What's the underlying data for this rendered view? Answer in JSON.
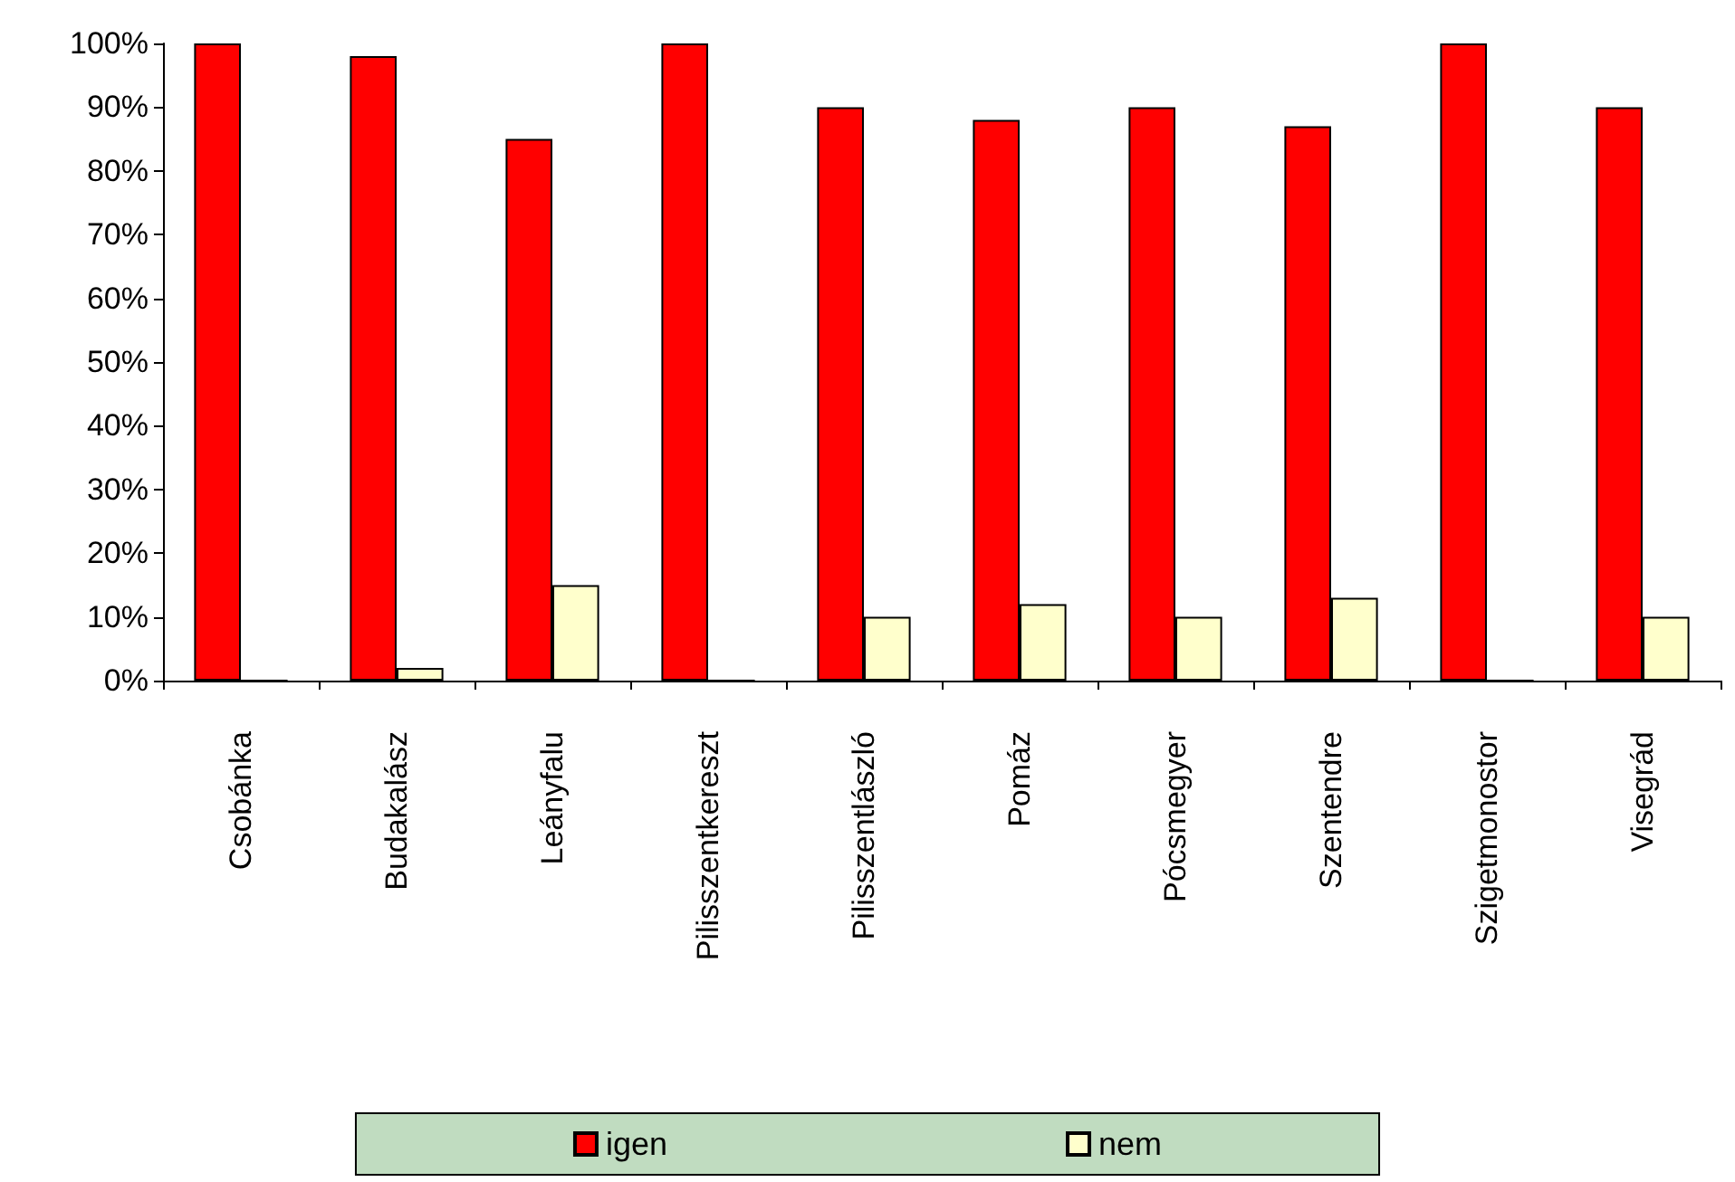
{
  "chart_data": {
    "type": "bar",
    "categories": [
      "Csobánka",
      "Budakalász",
      "Leányfalu",
      "Pilisszentkereszt",
      "Pilisszentlászló",
      "Pomáz",
      "Pócsmegyer",
      "Szentendre",
      "Szigetmonostor",
      "Visegrád"
    ],
    "series": [
      {
        "name": "igen",
        "color": "#ff0000",
        "values": [
          100,
          98,
          85,
          100,
          90,
          88,
          90,
          87,
          100,
          90
        ]
      },
      {
        "name": "nem",
        "color": "#ffffcc",
        "values": [
          0,
          2,
          15,
          0,
          10,
          12,
          10,
          13,
          0,
          10
        ]
      }
    ],
    "ylim": [
      0,
      100
    ],
    "yticks": [
      {
        "value": 0,
        "label": "0%"
      },
      {
        "value": 10,
        "label": "10%"
      },
      {
        "value": 20,
        "label": "20%"
      },
      {
        "value": 30,
        "label": "30%"
      },
      {
        "value": 40,
        "label": "40%"
      },
      {
        "value": 50,
        "label": "50%"
      },
      {
        "value": 60,
        "label": "60%"
      },
      {
        "value": 70,
        "label": "70%"
      },
      {
        "value": 80,
        "label": "80%"
      },
      {
        "value": 90,
        "label": "90%"
      },
      {
        "value": 100,
        "label": "100%"
      }
    ],
    "grid": false,
    "legend": "bottom"
  }
}
